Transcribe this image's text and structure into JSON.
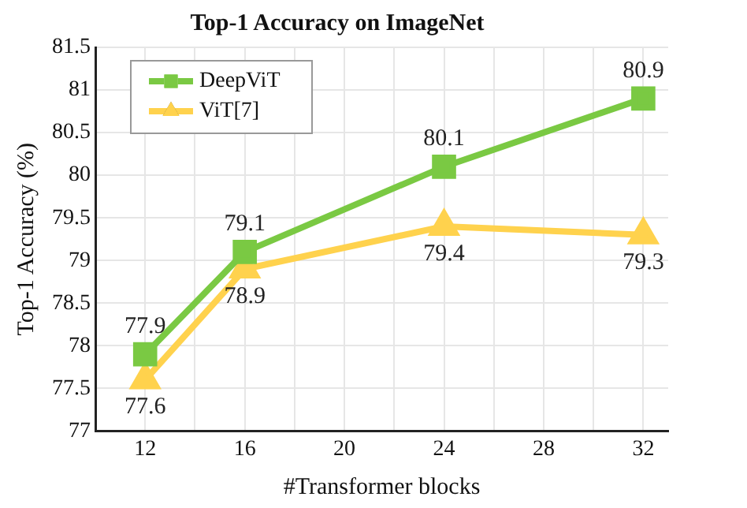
{
  "chart_data": {
    "type": "line",
    "title": "Top-1 Accuracy on ImageNet",
    "xlabel": "#Transformer blocks",
    "ylabel": "Top-1 Accuracy (%)",
    "x": [
      12,
      16,
      24,
      32
    ],
    "series": [
      {
        "name": "DeepViT",
        "color": "#7ac943",
        "values": [
          77.9,
          79.1,
          80.1,
          80.9
        ],
        "marker": "square"
      },
      {
        "name": "ViT[7]",
        "color": "#ffd24d",
        "values": [
          77.6,
          78.9,
          79.4,
          79.3
        ],
        "marker": "triangle"
      }
    ],
    "xlim": [
      10,
      33
    ],
    "xticks": [
      12,
      {
        "value": 14,
        "label": null
      },
      16,
      {
        "value": 18,
        "label": null
      },
      20,
      {
        "value": 22,
        "label": null
      },
      24,
      {
        "value": 26,
        "label": null
      },
      28,
      {
        "value": 30,
        "label": null
      },
      32
    ],
    "ylim": [
      77,
      81.5
    ],
    "yticks": [
      77,
      77.5,
      78,
      78.5,
      79,
      79.5,
      80,
      80.5,
      81,
      81.5
    ],
    "grid": true,
    "legend": "top left",
    "data_labels": true,
    "line_style": "solid"
  }
}
